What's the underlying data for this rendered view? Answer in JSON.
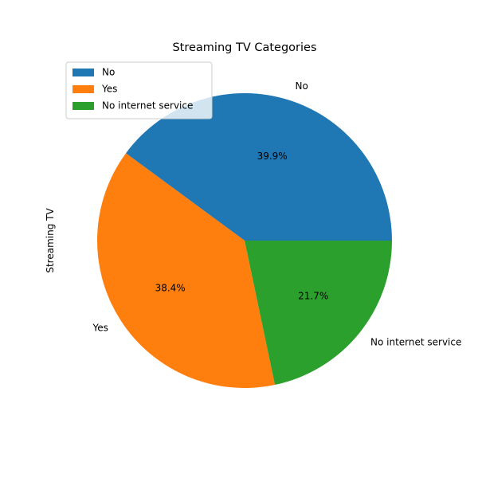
{
  "chart_data": {
    "type": "pie",
    "title": "Streaming TV Categories",
    "ylabel": "Streaming TV",
    "start_angle": 0,
    "direction": "counterclockwise",
    "legend_position": "upper-left",
    "slices": [
      {
        "label": "No",
        "value": 39.9,
        "pct_label": "39.9%",
        "color": "#1f77b4"
      },
      {
        "label": "Yes",
        "value": 38.4,
        "pct_label": "38.4%",
        "color": "#ff7f0e"
      },
      {
        "label": "No internet service",
        "value": 21.7,
        "pct_label": "21.7%",
        "color": "#2ca02c"
      }
    ]
  }
}
